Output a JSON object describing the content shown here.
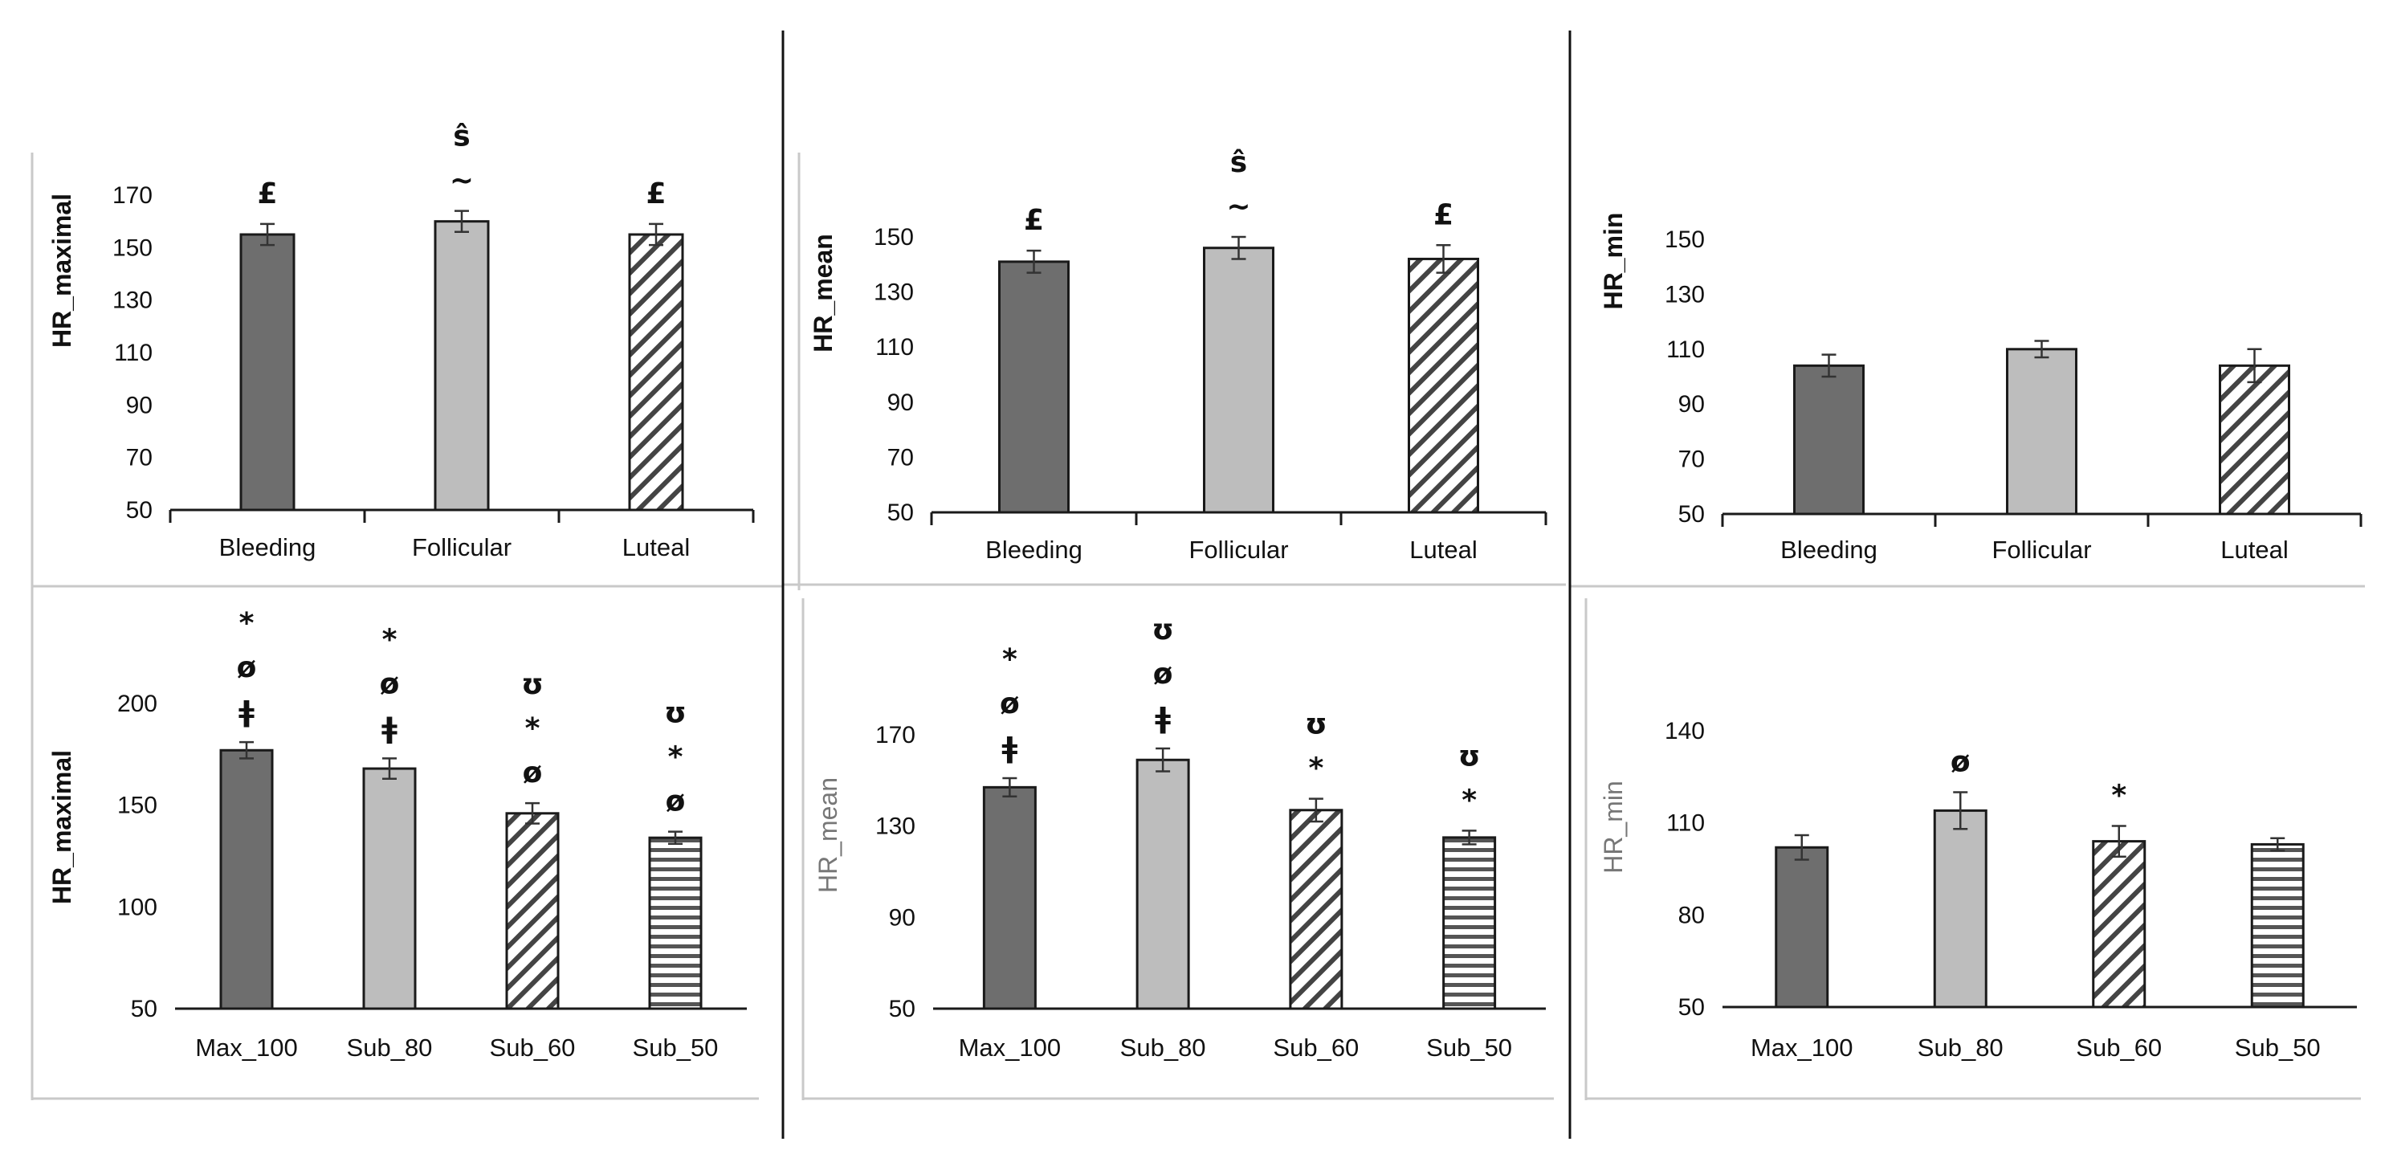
{
  "colors": {
    "dark": "#6e6e6e",
    "light": "#bdbdbd",
    "stroke": "#1a1a1a",
    "divider": "#111111",
    "frame": "#c9c9c9"
  },
  "chart_data": [
    {
      "type": "bar",
      "panel": "top-left",
      "ylabel": "HR_maximal",
      "ylabel_style": "bold",
      "categories": [
        "Bleeding",
        "Follicular",
        "Luteal"
      ],
      "values": [
        155,
        160,
        155
      ],
      "errors": [
        4,
        4,
        4
      ],
      "fills": [
        "dark",
        "light",
        "diag"
      ],
      "ylim": [
        50,
        170
      ],
      "yticks": [
        50,
        70,
        90,
        110,
        130,
        150,
        170
      ],
      "annotations": [
        [
          "£"
        ],
        [
          "ŝ",
          "~"
        ],
        [
          "£"
        ]
      ]
    },
    {
      "type": "bar",
      "panel": "top-middle",
      "ylabel": "HR_mean",
      "ylabel_style": "bold",
      "categories": [
        "Bleeding",
        "Follicular",
        "Luteal"
      ],
      "values": [
        141,
        146,
        142
      ],
      "errors": [
        4,
        4,
        5
      ],
      "fills": [
        "dark",
        "light",
        "diag"
      ],
      "ylim": [
        50,
        150
      ],
      "yticks": [
        50,
        70,
        90,
        110,
        130,
        150
      ],
      "annotations": [
        [
          "£"
        ],
        [
          "ŝ",
          "~"
        ],
        [
          "£"
        ]
      ]
    },
    {
      "type": "bar",
      "panel": "top-right",
      "ylabel": "HR_min",
      "ylabel_style": "bold",
      "categories": [
        "Bleeding",
        "Follicular",
        "Luteal"
      ],
      "values": [
        104,
        110,
        104
      ],
      "errors": [
        4,
        3,
        6
      ],
      "fills": [
        "dark",
        "light",
        "diag"
      ],
      "ylim": [
        50,
        150
      ],
      "yticks": [
        50,
        70,
        90,
        110,
        130,
        150
      ],
      "annotations": [
        [],
        [],
        []
      ]
    },
    {
      "type": "bar",
      "panel": "bottom-left",
      "ylabel": "HR_maximal",
      "ylabel_style": "bold",
      "categories": [
        "Max_100",
        "Sub_80",
        "Sub_60",
        "Sub_50"
      ],
      "values": [
        177,
        168,
        146,
        134
      ],
      "errors": [
        4,
        5,
        5,
        3
      ],
      "fills": [
        "dark",
        "light",
        "diag",
        "horiz"
      ],
      "ylim": [
        50,
        200
      ],
      "yticks": [
        50,
        100,
        150,
        200
      ],
      "annotations": [
        [
          "*",
          "ø",
          "ǂ"
        ],
        [
          "*",
          "ø",
          "ǂ"
        ],
        [
          "ʊ",
          "*",
          "ø"
        ],
        [
          "ʊ",
          "*",
          "ø"
        ]
      ]
    },
    {
      "type": "bar",
      "panel": "bottom-middle",
      "ylabel": "HR_mean",
      "ylabel_style": "grey",
      "categories": [
        "Max_100",
        "Sub_80",
        "Sub_60",
        "Sub_50"
      ],
      "values": [
        147,
        159,
        137,
        125
      ],
      "errors": [
        4,
        5,
        5,
        3
      ],
      "fills": [
        "dark",
        "light",
        "diag",
        "horiz"
      ],
      "ylim": [
        50,
        170
      ],
      "yticks": [
        50,
        90,
        130,
        170
      ],
      "annotations": [
        [
          "*",
          "ø",
          "ǂ"
        ],
        [
          "ʊ",
          "ø",
          "ǂ"
        ],
        [
          "ʊ",
          "*"
        ],
        [
          "ʊ",
          "*"
        ]
      ]
    },
    {
      "type": "bar",
      "panel": "bottom-right",
      "ylabel": "HR_min",
      "ylabel_style": "grey",
      "categories": [
        "Max_100",
        "Sub_80",
        "Sub_60",
        "Sub_50"
      ],
      "values": [
        102,
        114,
        104,
        103
      ],
      "errors": [
        4,
        6,
        5,
        2
      ],
      "fills": [
        "dark",
        "light",
        "diag",
        "horiz"
      ],
      "ylim": [
        50,
        140
      ],
      "yticks": [
        50,
        80,
        110,
        140
      ],
      "annotations": [
        [],
        [
          "ø"
        ],
        [
          "*"
        ],
        []
      ]
    }
  ]
}
